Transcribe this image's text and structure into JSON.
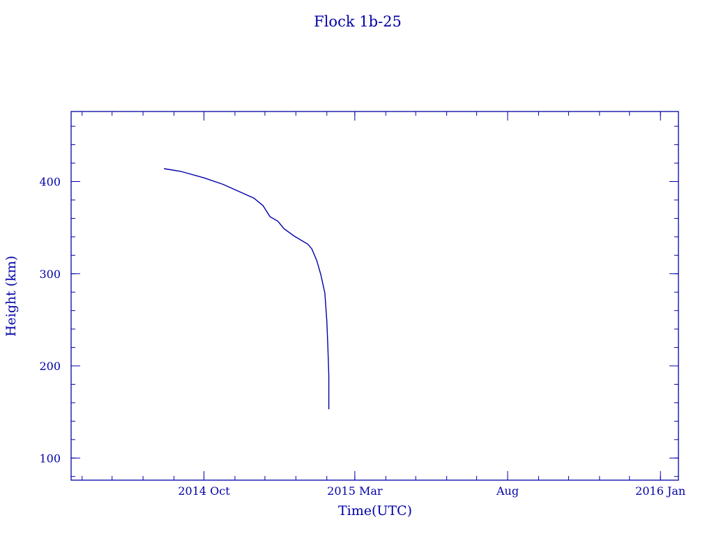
{
  "chart_data": {
    "type": "line",
    "title": "Flock 1b-25",
    "xlabel": "Time(UTC)",
    "ylabel": "Height (km)",
    "xlim": [
      "2014-05-21",
      "2016-01-19"
    ],
    "ylim": [
      76,
      476
    ],
    "x_major_ticks": [
      {
        "date": "2014-10-01",
        "label": "2014 Oct"
      },
      {
        "date": "2015-03-01",
        "label": "2015 Mar"
      },
      {
        "date": "2015-08-01",
        "label": "Aug"
      },
      {
        "date": "2016-01-01",
        "label": "2016 Jan"
      }
    ],
    "x_minor_tick_interval": "1 month",
    "y_major_ticks": [
      100,
      200,
      300,
      400
    ],
    "y_minor_tick_interval": 20,
    "grid": false,
    "color": "#0000a8",
    "series": [
      {
        "x": [
          "2014-08-22",
          "2014-09-08",
          "2014-10-01",
          "2014-10-20",
          "2014-11-20",
          "2014-11-29",
          "2014-12-06",
          "2014-12-14",
          "2014-12-20",
          "2014-12-30",
          "2015-01-13",
          "2015-01-17",
          "2015-01-22",
          "2015-01-26",
          "2015-01-30",
          "2015-02-01",
          "2015-02-02",
          "2015-02-03",
          "2015-02-03"
        ],
        "y": [
          414,
          411,
          404,
          397,
          382,
          374,
          362,
          357,
          349,
          341,
          332,
          327,
          314,
          299,
          279,
          249,
          221,
          189,
          153
        ]
      }
    ]
  }
}
